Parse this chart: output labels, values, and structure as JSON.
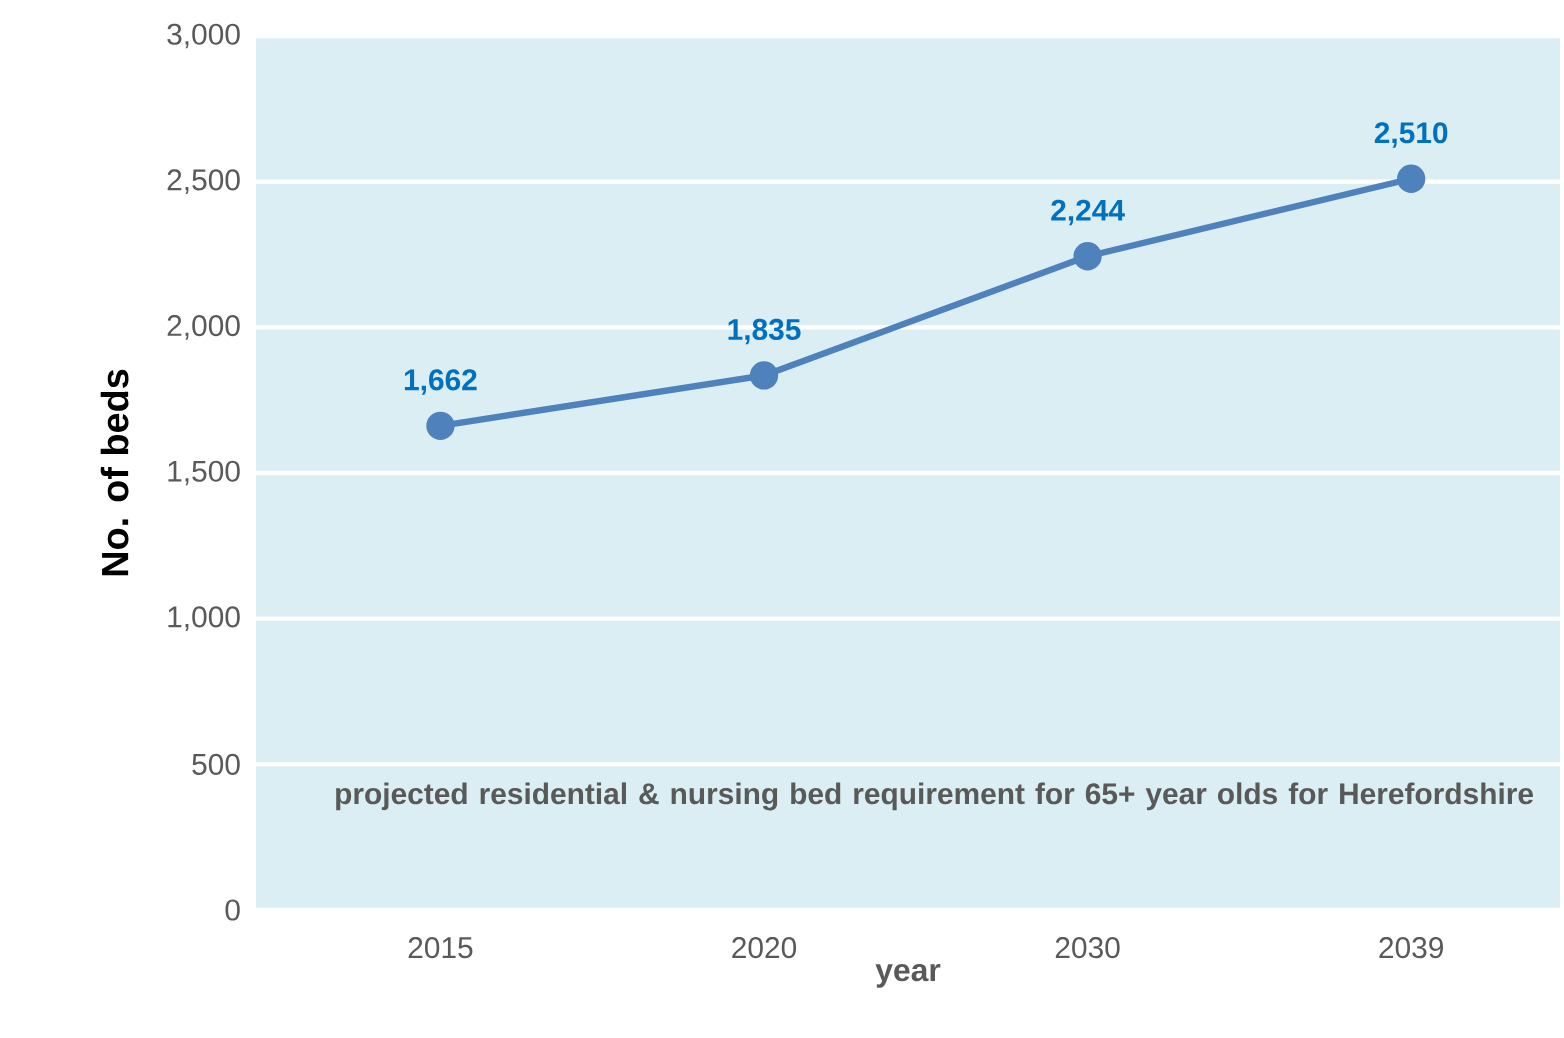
{
  "chart_data": {
    "type": "line",
    "xlabel": "year",
    "ylabel": "No. of beds",
    "categories": [
      "2015",
      "2020",
      "2030",
      "2039"
    ],
    "series": [
      {
        "color": "#4f81bd",
        "values": [
          1662,
          1835,
          2244,
          2510
        ]
      }
    ],
    "ylim": [
      0,
      3000
    ],
    "yticks": [
      0,
      500,
      {
        "value": 1000,
        "label": "1,000"
      },
      {
        "value": 1500,
        "label": "1,500"
      },
      {
        "value": 2000,
        "label": "2,000"
      },
      {
        "value": 2500,
        "label": "2,500"
      },
      {
        "value": 3000,
        "label": "3,000"
      }
    ],
    "value_labels": [
      "1,662",
      "1,835",
      "2,244",
      "2,510"
    ],
    "annotations": [
      "projected residential & nursing bed requirement for 65+ year olds for Herefordshire"
    ],
    "grid": "y",
    "marker": "circle",
    "line_style": "solid"
  }
}
